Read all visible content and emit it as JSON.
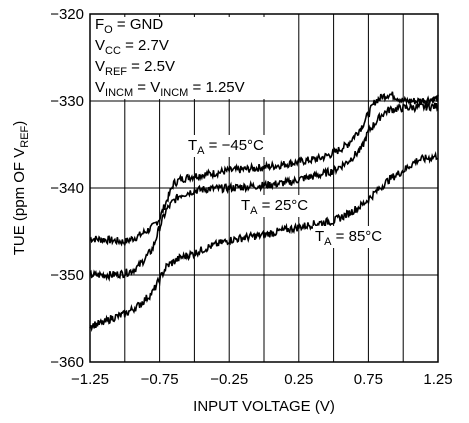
{
  "chart_data": {
    "type": "line",
    "title": "",
    "xlabel": "INPUT VOLTAGE (V)",
    "ylabel": {
      "main": "TUE (ppm OF V",
      "sub": "REF",
      "end": ")"
    },
    "xlim": [
      -1.25,
      1.25
    ],
    "ylim": [
      -360,
      -320
    ],
    "grid": true,
    "x_ticks": [
      -1.25,
      -1.0,
      -0.75,
      -0.5,
      -0.25,
      0.0,
      0.25,
      0.5,
      0.75,
      1.0,
      1.25
    ],
    "x_tick_labels": [
      "−1.25",
      "",
      "−0.75",
      "",
      "−0.25",
      "",
      "0.25",
      "",
      "0.75",
      "",
      "1.25"
    ],
    "y_ticks": [
      -360,
      -350,
      -340,
      -330,
      -320
    ],
    "y_tick_labels": [
      "−360",
      "−350",
      "−340",
      "−330",
      "−320"
    ],
    "conditions": [
      {
        "main": "F",
        "sub": "O",
        "rest": " = GND"
      },
      {
        "main": "V",
        "sub": "CC",
        "rest": " = 2.7V"
      },
      {
        "main": "V",
        "sub": "REF",
        "rest": " = 2.5V"
      },
      {
        "main": "V",
        "sub": "INCM",
        "rest": " = V",
        "sub2": "INCM",
        "rest2": " = 1.25V"
      }
    ],
    "series": [
      {
        "label": {
          "main": "T",
          "sub": "A",
          "rest": " = −45°C"
        },
        "x": [
          -1.25,
          -1.1,
          -1.0,
          -0.9,
          -0.8,
          -0.75,
          -0.7,
          -0.65,
          -0.6,
          -0.5,
          -0.4,
          -0.25,
          -0.1,
          0.0,
          0.1,
          0.25,
          0.4,
          0.5,
          0.6,
          0.7,
          0.75,
          0.8,
          0.85,
          0.9,
          0.95,
          1.0,
          1.1,
          1.2,
          1.25
        ],
        "y": [
          -345.8,
          -346.0,
          -346.2,
          -345.5,
          -344.5,
          -343.5,
          -341.5,
          -339.5,
          -339.0,
          -338.6,
          -338.4,
          -338.0,
          -337.8,
          -337.6,
          -337.4,
          -337.0,
          -336.6,
          -336.0,
          -335.0,
          -333.0,
          -331.5,
          -330.0,
          -329.5,
          -329.2,
          -329.5,
          -330.0,
          -330.0,
          -329.8,
          -329.7
        ]
      },
      {
        "label": {
          "main": "T",
          "sub": "A",
          "rest": " = 25°C"
        },
        "x": [
          -1.25,
          -1.1,
          -1.0,
          -0.95,
          -0.9,
          -0.8,
          -0.75,
          -0.7,
          -0.65,
          -0.6,
          -0.5,
          -0.4,
          -0.25,
          -0.1,
          0.0,
          0.1,
          0.2,
          0.25,
          0.4,
          0.5,
          0.6,
          0.7,
          0.75,
          0.8,
          0.85,
          0.9,
          1.0,
          1.1,
          1.25
        ],
        "y": [
          -350.0,
          -350.0,
          -349.8,
          -349.5,
          -349.0,
          -347.0,
          -344.5,
          -342.5,
          -341.5,
          -340.8,
          -340.3,
          -340.1,
          -340.0,
          -339.8,
          -339.7,
          -339.5,
          -339.3,
          -339.0,
          -338.5,
          -338.0,
          -337.0,
          -335.5,
          -333.5,
          -332.5,
          -331.5,
          -331.0,
          -330.8,
          -330.7,
          -330.6
        ]
      },
      {
        "label": {
          "main": "T",
          "sub": "A",
          "rest": " = 85°C"
        },
        "x": [
          -1.25,
          -1.15,
          -1.1,
          -1.0,
          -0.9,
          -0.8,
          -0.75,
          -0.7,
          -0.6,
          -0.5,
          -0.4,
          -0.25,
          -0.1,
          0.0,
          0.1,
          0.25,
          0.4,
          0.5,
          0.6,
          0.7,
          0.75,
          0.8,
          0.9,
          1.0,
          1.1,
          1.2,
          1.25
        ],
        "y": [
          -355.8,
          -355.5,
          -355.0,
          -354.5,
          -353.5,
          -352.0,
          -350.5,
          -349.0,
          -348.0,
          -347.5,
          -346.8,
          -346.0,
          -345.6,
          -345.4,
          -345.0,
          -344.5,
          -344.0,
          -343.8,
          -343.0,
          -342.0,
          -341.3,
          -340.5,
          -339.0,
          -338.0,
          -336.8,
          -336.5,
          -336.3
        ]
      }
    ]
  }
}
